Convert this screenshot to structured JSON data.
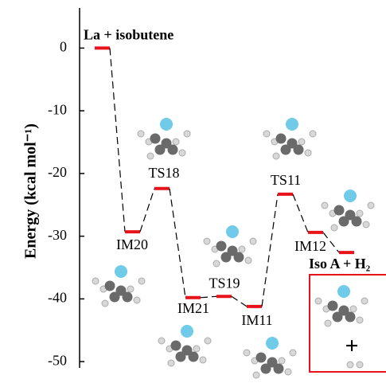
{
  "chart_data": {
    "type": "energy_profile",
    "ylabel": "Energy (kcal mol⁻¹)",
    "categories": [
      "La + isobutene",
      "IM20",
      "TS18",
      "IM21",
      "TS19",
      "IM11",
      "TS11",
      "IM12",
      "Iso A + H₂"
    ],
    "values": [
      0,
      -29.3,
      -22.4,
      -39.8,
      -39.6,
      -41.2,
      -23.3,
      -29.4,
      -32.6
    ],
    "color": "#e8121a",
    "ylim": [
      -51,
      6.4
    ],
    "yticks": [
      0,
      -10,
      -20,
      -30,
      -40,
      -50
    ]
  }
}
